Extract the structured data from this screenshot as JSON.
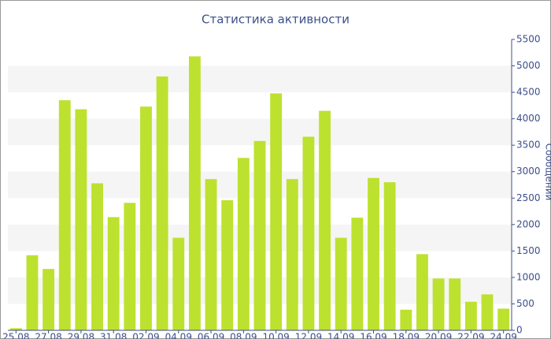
{
  "chart_data": {
    "type": "bar",
    "title": "Статистика активности",
    "y_label": "Сообщений",
    "categories": [
      "25.08",
      null,
      "27.08",
      null,
      "29.08",
      null,
      "31.08",
      null,
      "02.09",
      null,
      "04.09",
      null,
      "06.09",
      null,
      "08.09",
      null,
      "10.09",
      null,
      "12.09",
      null,
      "14.09",
      null,
      "16.09",
      null,
      "18.09",
      null,
      "20.09",
      null,
      "22.09",
      null,
      "24.09"
    ],
    "values": [
      40,
      1420,
      1160,
      4350,
      4180,
      2780,
      2140,
      2410,
      4230,
      4800,
      1750,
      5180,
      2860,
      2460,
      3260,
      3580,
      4480,
      2860,
      3660,
      4150,
      1750,
      2130,
      2880,
      2800,
      390,
      1440,
      980,
      980,
      540,
      680,
      410
    ],
    "color": "#bde12f",
    "ylim": [
      0,
      5500
    ],
    "yticks": [
      0,
      500,
      1000,
      1500,
      2000,
      2500,
      3000,
      3500,
      4000,
      4500,
      5000,
      5500
    ],
    "grid": true
  }
}
